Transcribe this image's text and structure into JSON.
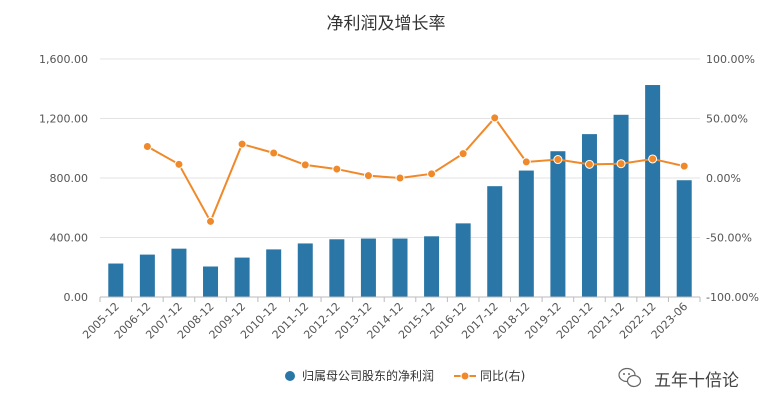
{
  "chart_data": {
    "type": "bar",
    "title": "净利润及增长率",
    "categories": [
      "2005-12",
      "2006-12",
      "2007-12",
      "2008-12",
      "2009-12",
      "2010-12",
      "2011-12",
      "2012-12",
      "2013-12",
      "2014-12",
      "2015-12",
      "2016-12",
      "2017-12",
      "2018-12",
      "2019-12",
      "2020-12",
      "2021-12",
      "2022-12",
      "2023-06"
    ],
    "series": [
      {
        "name": "归属母公司股东的净利润",
        "type": "bar",
        "axis": "left",
        "color": "#2a76a6",
        "values": [
          225,
          285,
          325,
          205,
          265,
          320,
          360,
          388,
          393,
          393,
          408,
          495,
          745,
          850,
          980,
          1095,
          1225,
          1425,
          785
        ]
      },
      {
        "name": "同比(右)",
        "type": "line",
        "axis": "right",
        "color": "#f0892a",
        "values": [
          null,
          26.5,
          11.5,
          -36.5,
          28.5,
          21.0,
          11.0,
          7.5,
          2.0,
          0.0,
          3.5,
          20.5,
          50.5,
          13.5,
          15.5,
          11.5,
          12.0,
          16.0,
          10.0
        ]
      }
    ],
    "y_left": {
      "ylim": [
        0,
        1600
      ],
      "ticks": [
        "0.00",
        "400.00",
        "800.00",
        "1,200.00",
        "1,600.00"
      ]
    },
    "y_right": {
      "ylim": [
        -100,
        100
      ],
      "ticks": [
        "-100.00%",
        "-50.00%",
        "0.00%",
        "50.00%",
        "100.00%"
      ]
    },
    "grid": true,
    "legend_position": "bottom"
  },
  "watermark": {
    "text": "五年十倍论",
    "icon": "wechat-icon"
  }
}
